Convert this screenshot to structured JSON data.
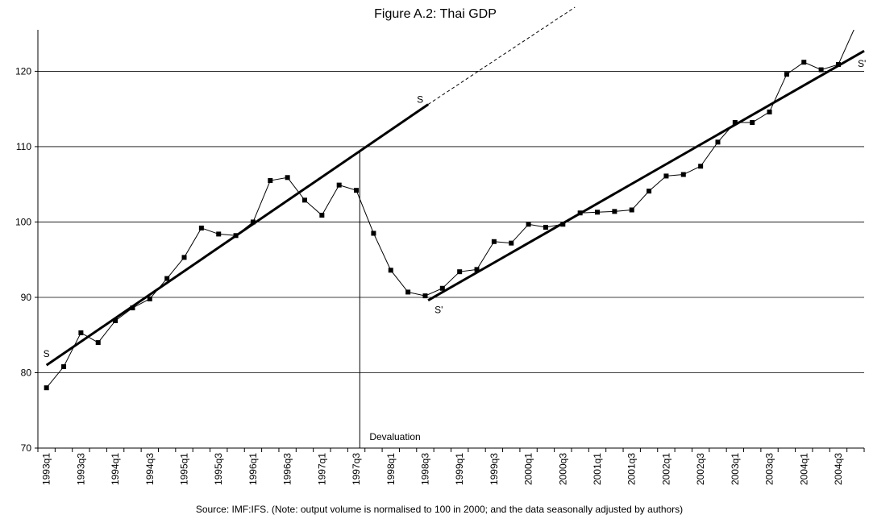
{
  "chart_data": {
    "type": "line",
    "title": "Figure A.2: Thai GDP",
    "annotation": "Source: IMF:IFS.   (Note: output volume is normalised to 100 in 2000; and the data seasonally adjusted by authors)",
    "categories": [
      "1993q1",
      null,
      "1993q3",
      null,
      "1994q1",
      null,
      "1994q3",
      null,
      "1995q1",
      null,
      "1995q3",
      null,
      "1996q1",
      null,
      "1996q3",
      null,
      "1997q1",
      null,
      "1997q3",
      null,
      "1998q1",
      null,
      "1998q3",
      null,
      "1999q1",
      null,
      "1999q3",
      null,
      "2000q1",
      null,
      "2000q3",
      null,
      "2001q1",
      null,
      "2001q3",
      null,
      "2002q1",
      null,
      "2002q3",
      null,
      "2003q1",
      null,
      "2003q3",
      null,
      "2004q1",
      null,
      "2004q3",
      null
    ],
    "series": [
      {
        "color": "#000000",
        "values": [
          78.0,
          80.8,
          85.3,
          84.0,
          86.9,
          88.6,
          89.8,
          92.5,
          95.3,
          99.2,
          98.4,
          98.2,
          100.0,
          105.5,
          105.9,
          102.9,
          100.9,
          104.9,
          104.2,
          98.5,
          93.6,
          90.7,
          90.2,
          91.2,
          93.4,
          93.7,
          97.4,
          97.2,
          99.7,
          99.3,
          99.7,
          101.2,
          101.3,
          101.4,
          101.6,
          104.1,
          106.1,
          106.3,
          107.4,
          110.6,
          113.2,
          113.2,
          114.6,
          119.6,
          121.2,
          120.2,
          120.9,
          126.0
        ]
      }
    ],
    "ylim": [
      70,
      125.5
    ],
    "yticks": [
      70,
      80,
      90,
      100,
      110,
      120
    ],
    "grid": true,
    "trend_lines": [
      {
        "labels": [
          "S",
          "S"
        ],
        "x": [
          0,
          22.17
        ],
        "values": [
          81.0,
          115.6
        ],
        "extension": {
          "x": 30.7,
          "value": 128.5
        }
      },
      {
        "labels": [
          "S'",
          "S'"
        ],
        "x": [
          22.17,
          47.5
        ],
        "values": [
          89.6,
          122.7
        ]
      }
    ],
    "event": {
      "label": "Devaluation",
      "x": 18.2,
      "value": 109.5
    }
  }
}
